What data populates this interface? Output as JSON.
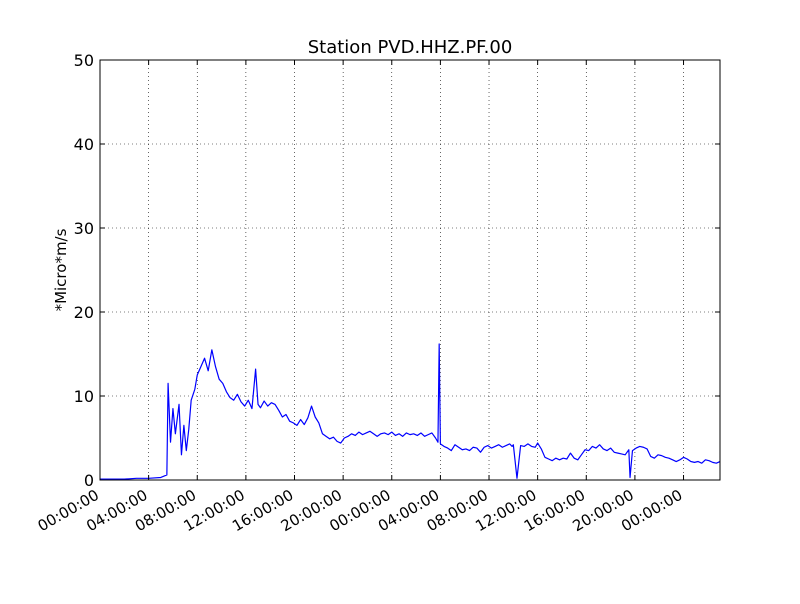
{
  "chart_data": {
    "type": "line",
    "title": "Station PVD.HHZ.PF.00",
    "xlabel": "",
    "ylabel": "*Micro*m/s",
    "ylim": [
      0,
      50
    ],
    "xlim_hours": [
      0,
      51
    ],
    "x_unit": "hours",
    "grid": true,
    "yticks": [
      0,
      10,
      20,
      30,
      40,
      50
    ],
    "xticks": [
      {
        "x": 0,
        "label": "00:00:00"
      },
      {
        "x": 4,
        "label": "04:00:00"
      },
      {
        "x": 8,
        "label": "08:00:00"
      },
      {
        "x": 12,
        "label": "12:00:00"
      },
      {
        "x": 16,
        "label": "16:00:00"
      },
      {
        "x": 20,
        "label": "20:00:00"
      },
      {
        "x": 24,
        "label": "00:00:00"
      },
      {
        "x": 28,
        "label": "04:00:00"
      },
      {
        "x": 32,
        "label": "08:00:00"
      },
      {
        "x": 36,
        "label": "12:00:00"
      },
      {
        "x": 40,
        "label": "16:00:00"
      },
      {
        "x": 44,
        "label": "20:00:00"
      },
      {
        "x": 48,
        "label": "00:00:00"
      }
    ],
    "series": [
      {
        "color": "#0000ff",
        "x": [
          0,
          1,
          2,
          3,
          4,
          5,
          5.5,
          5.6,
          5.8,
          6.0,
          6.2,
          6.5,
          6.7,
          6.9,
          7.1,
          7.3,
          7.5,
          7.8,
          8.0,
          8.3,
          8.6,
          8.9,
          9.2,
          9.5,
          9.8,
          10.1,
          10.4,
          10.7,
          11.0,
          11.3,
          11.6,
          11.9,
          12.2,
          12.5,
          12.8,
          13.0,
          13.2,
          13.5,
          13.8,
          14.1,
          14.4,
          14.7,
          15.0,
          15.3,
          15.6,
          15.9,
          16.2,
          16.5,
          16.8,
          17.1,
          17.4,
          17.7,
          18.0,
          18.3,
          18.6,
          18.9,
          19.2,
          19.5,
          19.8,
          20.1,
          20.4,
          20.7,
          21.0,
          21.3,
          21.6,
          21.9,
          22.2,
          22.5,
          22.8,
          23.1,
          23.4,
          23.7,
          24.0,
          24.3,
          24.6,
          24.9,
          25.2,
          25.5,
          25.8,
          26.1,
          26.4,
          26.7,
          27.0,
          27.3,
          27.6,
          27.8,
          27.9,
          28.0,
          28.3,
          28.6,
          28.9,
          29.2,
          29.5,
          29.8,
          30.1,
          30.4,
          30.7,
          31.0,
          31.3,
          31.6,
          31.9,
          32.2,
          32.5,
          32.8,
          33.1,
          33.4,
          33.7,
          33.9,
          34.0,
          34.3,
          34.6,
          34.9,
          35.2,
          35.5,
          35.8,
          36.0,
          36.3,
          36.6,
          36.9,
          37.2,
          37.5,
          37.8,
          38.1,
          38.4,
          38.7,
          39.0,
          39.3,
          39.6,
          39.9,
          40.2,
          40.5,
          40.8,
          41.1,
          41.4,
          41.7,
          42.0,
          42.3,
          42.6,
          42.9,
          43.2,
          43.5,
          43.6,
          43.8,
          44.1,
          44.4,
          44.7,
          45.0,
          45.3,
          45.6,
          45.9,
          46.2,
          46.5,
          46.8,
          47.1,
          47.4,
          47.7,
          48.0,
          48.3,
          48.6,
          48.9,
          49.2,
          49.5,
          49.8,
          50.1,
          50.4,
          50.7,
          51.0
        ],
        "y": [
          0.1,
          0.1,
          0.1,
          0.2,
          0.2,
          0.3,
          0.6,
          11.5,
          4.5,
          8.5,
          5.5,
          9.0,
          3.0,
          6.5,
          3.5,
          6.0,
          9.5,
          10.8,
          12.5,
          13.5,
          14.5,
          13.0,
          15.5,
          13.5,
          12.0,
          11.5,
          10.5,
          9.8,
          9.5,
          10.2,
          9.3,
          8.8,
          9.5,
          8.5,
          13.2,
          9.0,
          8.6,
          9.4,
          8.8,
          9.2,
          9.0,
          8.3,
          7.5,
          7.8,
          7.0,
          6.8,
          6.5,
          7.2,
          6.6,
          7.4,
          8.8,
          7.5,
          6.8,
          5.5,
          5.2,
          4.9,
          5.1,
          4.6,
          4.4,
          5.0,
          5.2,
          5.5,
          5.3,
          5.7,
          5.4,
          5.6,
          5.8,
          5.5,
          5.2,
          5.5,
          5.6,
          5.4,
          5.7,
          5.3,
          5.5,
          5.2,
          5.6,
          5.4,
          5.5,
          5.3,
          5.6,
          5.2,
          5.4,
          5.6,
          5.0,
          4.5,
          16.2,
          4.3,
          4.0,
          3.8,
          3.5,
          4.2,
          3.9,
          3.6,
          3.7,
          3.5,
          3.9,
          3.8,
          3.3,
          3.9,
          4.1,
          3.8,
          4.0,
          4.2,
          3.9,
          4.1,
          4.3,
          4.0,
          4.2,
          0.2,
          4.1,
          4.0,
          4.3,
          4.0,
          3.9,
          4.4,
          3.7,
          2.7,
          2.5,
          2.3,
          2.6,
          2.4,
          2.6,
          2.5,
          3.2,
          2.6,
          2.4,
          3.0,
          3.6,
          3.5,
          4.0,
          3.8,
          4.2,
          3.7,
          3.5,
          3.8,
          3.3,
          3.2,
          3.1,
          3.0,
          3.6,
          0.3,
          3.5,
          3.8,
          4.0,
          3.9,
          3.7,
          2.8,
          2.6,
          3.0,
          2.9,
          2.7,
          2.6,
          2.4,
          2.2,
          2.4,
          2.7,
          2.5,
          2.2,
          2.1,
          2.2,
          2.0,
          2.4,
          2.3,
          2.1,
          2.0,
          2.2
        ]
      }
    ]
  }
}
